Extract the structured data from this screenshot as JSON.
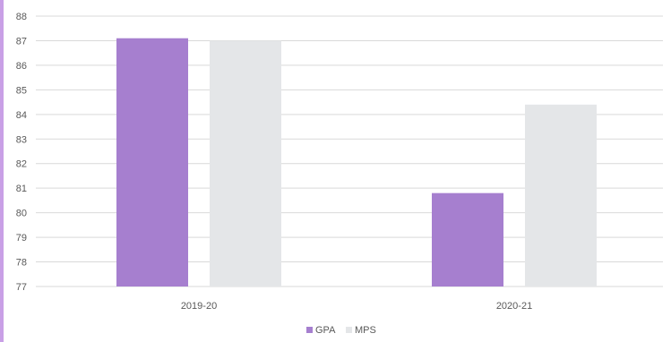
{
  "chart_data": {
    "type": "bar",
    "title": "",
    "xlabel": "",
    "ylabel": "",
    "categories": [
      "2019-20",
      "2020-21"
    ],
    "series": [
      {
        "name": "GPA",
        "color": "#a67fcf",
        "values": [
          87.1,
          80.8
        ]
      },
      {
        "name": "MPS",
        "color": "#e4e6e8",
        "values": [
          87.0,
          84.4
        ]
      }
    ],
    "ylim": [
      77,
      88
    ],
    "yticks": [
      "77",
      "78",
      "79",
      "80",
      "81",
      "82",
      "83",
      "84",
      "85",
      "86",
      "87",
      "88"
    ],
    "grid": true,
    "legend_position": "bottom"
  },
  "colors": {
    "accent_border": "#c9a0e6",
    "gridline": "#d9d9d9",
    "axis_text": "#595959"
  }
}
